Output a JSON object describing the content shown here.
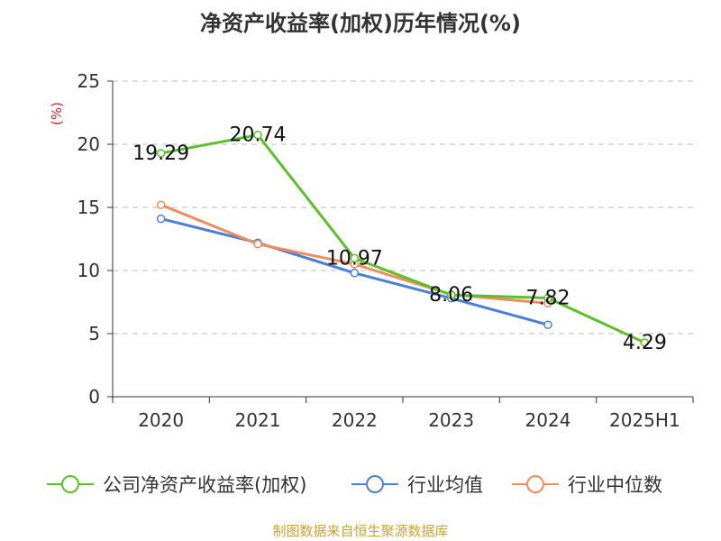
{
  "chart_data": {
    "type": "line",
    "title": "净资产收益率(加权)历年情况(%)",
    "ylabel": "(%)",
    "xlabel": "",
    "categories": [
      "2020",
      "2021",
      "2022",
      "2023",
      "2024",
      "2025H1"
    ],
    "ylim": [
      0,
      25
    ],
    "yticks": [
      0,
      5,
      10,
      15,
      20,
      25
    ],
    "grid": true,
    "legend_position": "bottom",
    "series": [
      {
        "name": "公司净资产收益率(加权)",
        "color": "#5cc02a",
        "values": [
          19.29,
          20.74,
          10.97,
          8.06,
          7.82,
          4.29
        ],
        "labels": [
          "19.29",
          "20.74",
          "10.97",
          "8.06",
          "7.82",
          "4.29"
        ]
      },
      {
        "name": "行业均值",
        "color": "#4a7fd9",
        "values": [
          14.1,
          12.2,
          9.8,
          7.8,
          5.7,
          null
        ]
      },
      {
        "name": "行业中位数",
        "color": "#f08d5b",
        "values": [
          15.2,
          12.1,
          10.5,
          8.1,
          7.4,
          null
        ]
      }
    ]
  },
  "source": "制图数据来自恒生聚源数据库"
}
